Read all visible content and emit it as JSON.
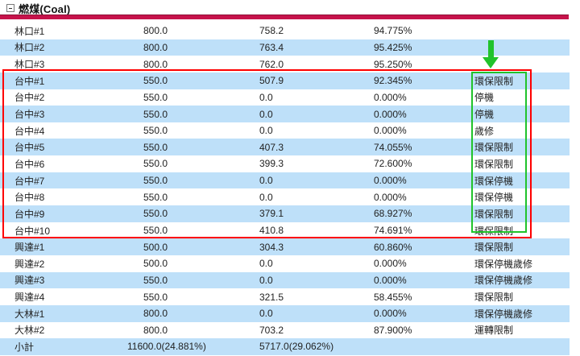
{
  "section": {
    "title": "燃煤(Coal)"
  },
  "table": {
    "rows": [
      {
        "name": "林口#1",
        "capacity": "800.0",
        "output": "758.2",
        "percent": "94.775%",
        "status": ""
      },
      {
        "name": "林口#2",
        "capacity": "800.0",
        "output": "763.4",
        "percent": "95.425%",
        "status": ""
      },
      {
        "name": "林口#3",
        "capacity": "800.0",
        "output": "762.0",
        "percent": "95.250%",
        "status": ""
      },
      {
        "name": "台中#1",
        "capacity": "550.0",
        "output": "507.9",
        "percent": "92.345%",
        "status": "環保限制"
      },
      {
        "name": "台中#2",
        "capacity": "550.0",
        "output": "0.0",
        "percent": "0.000%",
        "status": "停機"
      },
      {
        "name": "台中#3",
        "capacity": "550.0",
        "output": "0.0",
        "percent": "0.000%",
        "status": "停機"
      },
      {
        "name": "台中#4",
        "capacity": "550.0",
        "output": "0.0",
        "percent": "0.000%",
        "status": "歲修"
      },
      {
        "name": "台中#5",
        "capacity": "550.0",
        "output": "407.3",
        "percent": "74.055%",
        "status": "環保限制"
      },
      {
        "name": "台中#6",
        "capacity": "550.0",
        "output": "399.3",
        "percent": "72.600%",
        "status": "環保限制"
      },
      {
        "name": "台中#7",
        "capacity": "550.0",
        "output": "0.0",
        "percent": "0.000%",
        "status": "環保停機"
      },
      {
        "name": "台中#8",
        "capacity": "550.0",
        "output": "0.0",
        "percent": "0.000%",
        "status": "環保停機"
      },
      {
        "name": "台中#9",
        "capacity": "550.0",
        "output": "379.1",
        "percent": "68.927%",
        "status": "環保限制"
      },
      {
        "name": "台中#10",
        "capacity": "550.0",
        "output": "410.8",
        "percent": "74.691%",
        "status": "環保限制"
      },
      {
        "name": "興達#1",
        "capacity": "500.0",
        "output": "304.3",
        "percent": "60.860%",
        "status": "環保限制"
      },
      {
        "name": "興達#2",
        "capacity": "500.0",
        "output": "0.0",
        "percent": "0.000%",
        "status": "環保停機歲修"
      },
      {
        "name": "興達#3",
        "capacity": "550.0",
        "output": "0.0",
        "percent": "0.000%",
        "status": "環保停機歲修"
      },
      {
        "name": "興達#4",
        "capacity": "550.0",
        "output": "321.5",
        "percent": "58.455%",
        "status": "環保限制"
      },
      {
        "name": "大林#1",
        "capacity": "800.0",
        "output": "0.0",
        "percent": "0.000%",
        "status": "環保停機歲修"
      },
      {
        "name": "大林#2",
        "capacity": "800.0",
        "output": "703.2",
        "percent": "87.900%",
        "status": "運轉限制"
      },
      {
        "name": "小計",
        "capacity": "11600.0(24.881%)",
        "output": "5717.0(29.062%)",
        "percent": "",
        "status": ""
      }
    ]
  },
  "colors": {
    "header_bar": "#c6134b",
    "row_stripe": "#bee0f9",
    "annotation_red": "#fe0000",
    "annotation_green": "#21c32b",
    "text": "#222222"
  }
}
